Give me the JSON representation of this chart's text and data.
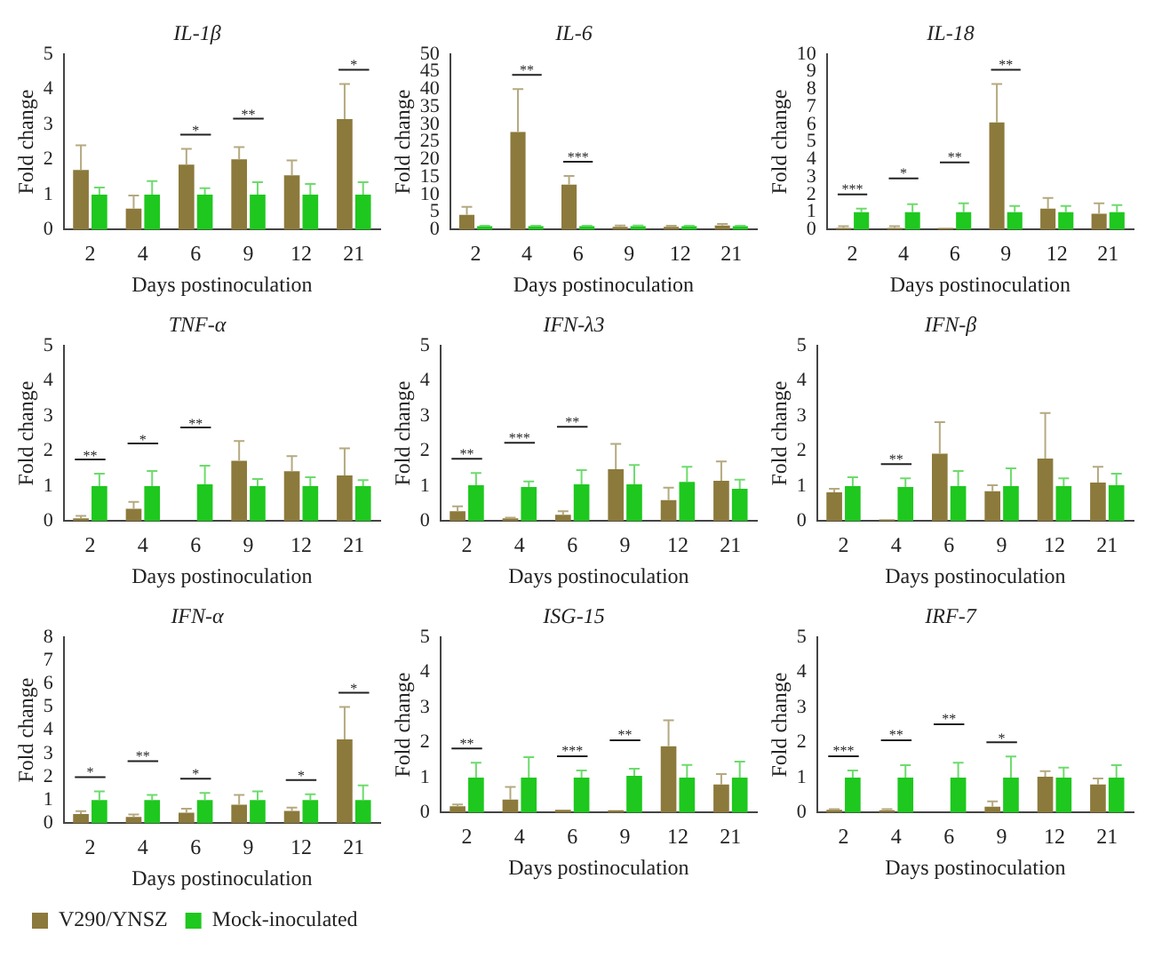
{
  "chart_data": [
    {
      "type": "bar",
      "title": "IL-1β",
      "xlabel": "Days postinoculation",
      "ylabel": "Fold change",
      "categories": [
        "2",
        "4",
        "6",
        "9",
        "12",
        "21"
      ],
      "ylim": [
        0,
        5
      ],
      "yticks": [
        0,
        1,
        2,
        3,
        4,
        5
      ],
      "grid": false,
      "series": [
        {
          "color": "#8c7a3c",
          "values": [
            1.7,
            0.6,
            1.85,
            2.0,
            1.55,
            3.15
          ],
          "errors": [
            [
              1.7,
              2.4
            ],
            [
              0.6,
              0.97
            ],
            [
              1.85,
              2.3
            ],
            [
              2.0,
              2.35
            ],
            [
              1.55,
              1.97
            ],
            [
              3.15,
              4.15
            ]
          ]
        },
        {
          "color": "#1ec81e",
          "values": [
            1,
            1,
            1,
            1,
            1,
            1
          ],
          "errors": [
            [
              1,
              1.2
            ],
            [
              1,
              1.38
            ],
            [
              1,
              1.18
            ],
            [
              1,
              1.35
            ],
            [
              1,
              1.3
            ],
            [
              1,
              1.35
            ]
          ]
        }
      ],
      "annotations": [
        {
          "text": "*",
          "x": "6",
          "y": 2.3
        },
        {
          "text": "**",
          "x": "9",
          "y": 2.35
        },
        {
          "text": "*",
          "x": "21",
          "y": 4.15
        }
      ]
    },
    {
      "type": "bar",
      "title": "IL-6",
      "xlabel": "Days postinoculation",
      "ylabel": "Fold change",
      "categories": [
        "2",
        "4",
        "6",
        "9",
        "12",
        "21"
      ],
      "ylim": [
        0,
        50
      ],
      "yticks": [
        0,
        5,
        10,
        15,
        20,
        25,
        30,
        35,
        40,
        45,
        50
      ],
      "grid": false,
      "series": [
        {
          "color": "#8c7a3c",
          "values": [
            4.2,
            27.8,
            12.8,
            0.8,
            0.8,
            1.2
          ],
          "errors": [
            [
              4.2,
              6.5
            ],
            [
              27.8,
              40
            ],
            [
              12.8,
              15.3
            ],
            [
              0.8,
              1.2
            ],
            [
              0.8,
              1.1
            ],
            [
              1.2,
              1.6
            ]
          ]
        },
        {
          "color": "#1ec81e",
          "values": [
            1,
            1,
            1,
            1,
            1,
            1
          ],
          "errors": [
            [
              1,
              1.1
            ],
            [
              1,
              1.1
            ],
            [
              1,
              1.1
            ],
            [
              1,
              1.2
            ],
            [
              1,
              1.1
            ],
            [
              1,
              1.1
            ]
          ]
        }
      ],
      "annotations": [
        {
          "text": "**",
          "x": "4",
          "y": 40
        },
        {
          "text": "***",
          "x": "6",
          "y": 15.3
        }
      ]
    },
    {
      "type": "bar",
      "title": "IL-18",
      "xlabel": "Days postinoculation",
      "ylabel": "Fold change",
      "categories": [
        "2",
        "4",
        "6",
        "9",
        "12",
        "21"
      ],
      "ylim": [
        0,
        10
      ],
      "yticks": [
        0,
        1,
        2,
        3,
        4,
        5,
        6,
        7,
        8,
        9,
        10
      ],
      "grid": false,
      "series": [
        {
          "color": "#8c7a3c",
          "values": [
            0.1,
            0.1,
            0.1,
            6.1,
            1.2,
            0.9
          ],
          "errors": [
            [
              0.1,
              0.2
            ],
            [
              0.1,
              0.2
            ],
            null,
            [
              6.1,
              8.3
            ],
            [
              1.2,
              1.8
            ],
            [
              0.9,
              1.5
            ]
          ]
        },
        {
          "color": "#1ec81e",
          "values": [
            1,
            1,
            1,
            1,
            1,
            1
          ],
          "errors": [
            [
              1,
              1.2
            ],
            [
              1,
              1.45
            ],
            [
              1,
              1.5
            ],
            [
              1,
              1.35
            ],
            [
              1,
              1.35
            ],
            [
              1,
              1.4
            ]
          ]
        }
      ],
      "annotations": [
        {
          "text": "***",
          "x": "2",
          "y": 1.2
        },
        {
          "text": "*",
          "x": "4",
          "y": 1.45
        },
        {
          "text": "**",
          "x": "6",
          "y": 1.5
        },
        {
          "text": "**",
          "x": "9",
          "y": 8.3
        }
      ]
    },
    {
      "type": "bar",
      "title": "TNF-α",
      "xlabel": "Days postinoculation",
      "ylabel": "Fold change",
      "categories": [
        "2",
        "4",
        "6",
        "9",
        "12",
        "21"
      ],
      "ylim": [
        0,
        5
      ],
      "yticks": [
        0,
        1,
        2,
        3,
        4,
        5
      ],
      "grid": false,
      "series": [
        {
          "color": "#8c7a3c",
          "values": [
            0.08,
            0.35,
            null,
            1.72,
            1.42,
            1.3
          ],
          "errors": [
            [
              0.08,
              0.15
            ],
            [
              0.35,
              0.55
            ],
            null,
            [
              1.72,
              2.28
            ],
            [
              1.42,
              1.85
            ],
            [
              1.3,
              2.07
            ]
          ]
        },
        {
          "color": "#1ec81e",
          "values": [
            1,
            1,
            1.05,
            1,
            1,
            1
          ],
          "errors": [
            [
              1,
              1.35
            ],
            [
              1,
              1.43
            ],
            [
              1.05,
              1.58
            ],
            [
              1,
              1.2
            ],
            [
              1,
              1.25
            ],
            [
              1,
              1.17
            ]
          ]
        }
      ],
      "annotations": [
        {
          "text": "**",
          "x": "2",
          "y": 1.35
        },
        {
          "text": "*",
          "x": "4",
          "y": 1.43
        },
        {
          "text": "**",
          "x": "6",
          "y": 1.58
        }
      ]
    },
    {
      "type": "bar",
      "title": "IFN-λ3",
      "xlabel": "Days postinoculation",
      "ylabel": "Fold change",
      "categories": [
        "2",
        "4",
        "6",
        "9",
        "12",
        "21"
      ],
      "ylim": [
        0,
        5
      ],
      "yticks": [
        0,
        1,
        2,
        3,
        4,
        5
      ],
      "grid": false,
      "series": [
        {
          "color": "#8c7a3c",
          "values": [
            0.28,
            0.08,
            0.18,
            1.48,
            0.6,
            1.15
          ],
          "errors": [
            [
              0.28,
              0.42
            ],
            [
              0.08,
              0.1
            ],
            [
              0.18,
              0.28
            ],
            [
              1.48,
              2.2
            ],
            [
              0.6,
              0.95
            ],
            [
              1.15,
              1.7
            ]
          ]
        },
        {
          "color": "#1ec81e",
          "values": [
            1.02,
            0.97,
            1.05,
            1.05,
            1.12,
            0.92
          ],
          "errors": [
            [
              1.02,
              1.37
            ],
            [
              0.97,
              1.13
            ],
            [
              1.05,
              1.45
            ],
            [
              1.05,
              1.6
            ],
            [
              1.12,
              1.55
            ],
            [
              0.92,
              1.18
            ]
          ]
        }
      ],
      "annotations": [
        {
          "text": "**",
          "x": "2",
          "y": 1.37
        },
        {
          "text": "***",
          "x": "4",
          "y": 1.13
        },
        {
          "text": "**",
          "x": "6",
          "y": 1.45
        }
      ]
    },
    {
      "type": "bar",
      "title": "IFN-β",
      "xlabel": "Days postinoculation",
      "ylabel": "Fold change",
      "categories": [
        "2",
        "4",
        "6",
        "9",
        "12",
        "21"
      ],
      "ylim": [
        0,
        5
      ],
      "yticks": [
        0,
        1,
        2,
        3,
        4,
        5
      ],
      "grid": false,
      "series": [
        {
          "color": "#8c7a3c",
          "values": [
            0.82,
            0.05,
            1.92,
            0.85,
            1.78,
            1.1
          ],
          "errors": [
            [
              0.82,
              0.92
            ],
            null,
            [
              1.92,
              2.82
            ],
            [
              0.85,
              1.02
            ],
            [
              1.78,
              3.08
            ],
            [
              1.1,
              1.55
            ]
          ]
        },
        {
          "color": "#1ec81e",
          "values": [
            1,
            0.97,
            1,
            1,
            1,
            1.02
          ],
          "errors": [
            [
              1,
              1.25
            ],
            [
              0.97,
              1.22
            ],
            [
              1,
              1.43
            ],
            [
              1,
              1.5
            ],
            [
              1,
              1.22
            ],
            [
              1.02,
              1.35
            ]
          ]
        }
      ],
      "annotations": [
        {
          "text": "**",
          "x": "4",
          "y": 1.22
        }
      ]
    },
    {
      "type": "bar",
      "title": "IFN-α",
      "xlabel": "Days postinoculation",
      "ylabel": "Fold change",
      "categories": [
        "2",
        "4",
        "6",
        "9",
        "12",
        "21"
      ],
      "ylim": [
        0,
        8
      ],
      "yticks": [
        0,
        1,
        2,
        3,
        4,
        5,
        6,
        7,
        8
      ],
      "grid": false,
      "legend": "bottom",
      "series": [
        {
          "name": "V290/YNSZ",
          "color": "#8c7a3c",
          "values": [
            0.4,
            0.27,
            0.45,
            0.8,
            0.53,
            3.6
          ],
          "errors": [
            [
              0.4,
              0.52
            ],
            [
              0.27,
              0.38
            ],
            [
              0.45,
              0.63
            ],
            [
              0.8,
              1.22
            ],
            [
              0.53,
              0.67
            ],
            [
              3.6,
              5.0
            ]
          ]
        },
        {
          "name": "Mock-inoculated",
          "color": "#1ec81e",
          "values": [
            1,
            1,
            1,
            1,
            1,
            1
          ],
          "errors": [
            [
              1,
              1.37
            ],
            [
              1,
              1.22
            ],
            [
              1,
              1.3
            ],
            [
              1,
              1.37
            ],
            [
              1,
              1.25
            ],
            [
              1,
              1.63
            ]
          ]
        }
      ],
      "annotations": [
        {
          "text": "*",
          "x": "2",
          "y": 1.37
        },
        {
          "text": "**",
          "x": "4",
          "y": 1.22
        },
        {
          "text": "*",
          "x": "6",
          "y": 1.3
        },
        {
          "text": "*",
          "x": "12",
          "y": 1.25
        },
        {
          "text": "*",
          "x": "21",
          "y": 5.0
        }
      ]
    },
    {
      "type": "bar",
      "title": "ISG-15",
      "xlabel": "Days postinoculation",
      "ylabel": "Fold change",
      "categories": [
        "2",
        "4",
        "6",
        "9",
        "12",
        "21"
      ],
      "ylim": [
        0,
        5
      ],
      "yticks": [
        0,
        1,
        2,
        3,
        4,
        5
      ],
      "grid": false,
      "series": [
        {
          "color": "#8c7a3c",
          "values": [
            0.18,
            0.37,
            0.08,
            0.07,
            1.89,
            0.8
          ],
          "errors": [
            [
              0.18,
              0.23
            ],
            [
              0.37,
              0.73
            ],
            null,
            null,
            [
              1.89,
              2.63
            ],
            [
              0.8,
              1.1
            ]
          ]
        },
        {
          "color": "#1ec81e",
          "values": [
            1,
            1,
            1,
            1.05,
            1,
            1
          ],
          "errors": [
            [
              1,
              1.42
            ],
            [
              1,
              1.58
            ],
            [
              1,
              1.2
            ],
            [
              1.05,
              1.25
            ],
            [
              1,
              1.36
            ],
            [
              1,
              1.45
            ]
          ]
        }
      ],
      "annotations": [
        {
          "text": "**",
          "x": "2",
          "y": 1.42
        },
        {
          "text": "***",
          "x": "6",
          "y": 1.2
        },
        {
          "text": "**",
          "x": "9",
          "y": 1.25
        }
      ]
    },
    {
      "type": "bar",
      "title": "IRF-7",
      "xlabel": "Days postinoculation",
      "ylabel": "Fold change",
      "categories": [
        "2",
        "4",
        "6",
        "9",
        "12",
        "21"
      ],
      "ylim": [
        0,
        5
      ],
      "yticks": [
        0,
        1,
        2,
        3,
        4,
        5
      ],
      "grid": false,
      "series": [
        {
          "color": "#8c7a3c",
          "values": [
            0.08,
            0.07,
            null,
            0.17,
            1.02,
            0.8
          ],
          "errors": [
            [
              0.08,
              0.1
            ],
            [
              0.07,
              0.1
            ],
            null,
            [
              0.17,
              0.32
            ],
            [
              1.02,
              1.18
            ],
            [
              0.8,
              0.97
            ]
          ]
        },
        {
          "color": "#1ec81e",
          "values": [
            1,
            1,
            1,
            1,
            1,
            1
          ],
          "errors": [
            [
              1,
              1.2
            ],
            [
              1,
              1.35
            ],
            [
              1,
              1.42
            ],
            [
              1,
              1.6
            ],
            [
              1,
              1.28
            ],
            [
              1,
              1.35
            ]
          ]
        }
      ],
      "annotations": [
        {
          "text": "***",
          "x": "2",
          "y": 1.2
        },
        {
          "text": "**",
          "x": "4",
          "y": 1.35
        },
        {
          "text": "**",
          "x": "6",
          "y": 1.42
        },
        {
          "text": "*",
          "x": "9",
          "y": 1.6
        }
      ]
    }
  ]
}
